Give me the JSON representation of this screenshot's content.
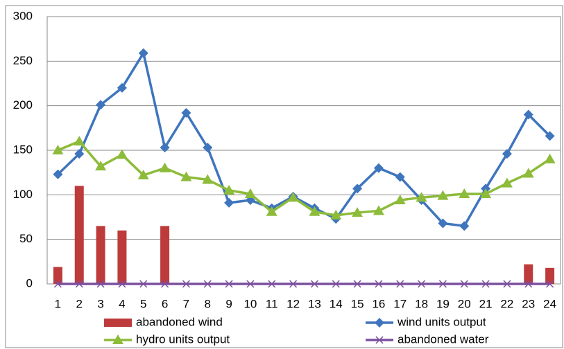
{
  "chart_data": {
    "type": "combo",
    "categories": [
      "1",
      "2",
      "3",
      "4",
      "5",
      "6",
      "7",
      "8",
      "9",
      "10",
      "11",
      "12",
      "13",
      "14",
      "15",
      "16",
      "17",
      "18",
      "19",
      "20",
      "21",
      "22",
      "23",
      "24"
    ],
    "series": [
      {
        "name": "abandoned wind",
        "type": "bar",
        "color": "#be3b3b",
        "values": [
          19,
          110,
          65,
          60,
          1,
          65,
          0,
          0,
          0,
          0,
          0,
          0,
          0,
          0,
          0,
          0,
          0,
          0,
          0,
          0,
          0,
          0,
          22,
          18
        ]
      },
      {
        "name": "wind units output",
        "type": "line",
        "marker": "diamond",
        "color": "#3e75bd",
        "values": [
          123,
          146,
          201,
          220,
          259,
          153,
          192,
          153,
          91,
          94,
          85,
          98,
          85,
          73,
          107,
          130,
          120,
          94,
          68,
          65,
          107,
          146,
          190,
          166
        ]
      },
      {
        "name": "hydro units output",
        "type": "line",
        "marker": "triangle",
        "color": "#8dbb3a",
        "values": [
          150,
          160,
          132,
          145,
          122,
          130,
          120,
          117,
          105,
          101,
          81,
          97,
          81,
          77,
          80,
          82,
          94,
          97,
          99,
          101,
          101,
          113,
          124,
          140
        ]
      },
      {
        "name": "abandoned water",
        "type": "line",
        "marker": "x",
        "color": "#7b4f9e",
        "values": [
          0,
          0,
          0,
          0,
          0,
          0,
          0,
          0,
          0,
          0,
          0,
          0,
          0,
          0,
          0,
          0,
          0,
          0,
          0,
          0,
          0,
          0,
          0,
          0
        ]
      }
    ],
    "ylim": [
      0,
      300
    ],
    "yticks": [
      0,
      50,
      100,
      150,
      200,
      250,
      300
    ],
    "grid": true
  }
}
